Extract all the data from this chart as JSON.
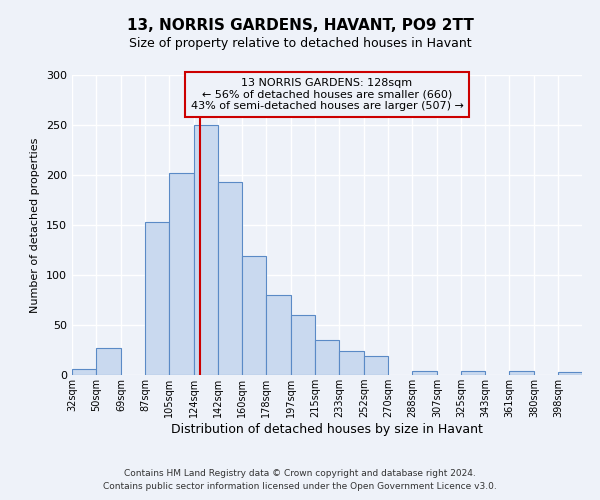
{
  "title": "13, NORRIS GARDENS, HAVANT, PO9 2TT",
  "subtitle": "Size of property relative to detached houses in Havant",
  "xlabel": "Distribution of detached houses by size in Havant",
  "ylabel": "Number of detached properties",
  "bin_labels": [
    "32sqm",
    "50sqm",
    "69sqm",
    "87sqm",
    "105sqm",
    "124sqm",
    "142sqm",
    "160sqm",
    "178sqm",
    "197sqm",
    "215sqm",
    "233sqm",
    "252sqm",
    "270sqm",
    "288sqm",
    "307sqm",
    "325sqm",
    "343sqm",
    "361sqm",
    "380sqm",
    "398sqm"
  ],
  "bin_edges": [
    32,
    50,
    69,
    87,
    105,
    124,
    142,
    160,
    178,
    197,
    215,
    233,
    252,
    270,
    288,
    307,
    325,
    343,
    361,
    380,
    398
  ],
  "bar_heights": [
    6,
    27,
    0,
    153,
    202,
    250,
    193,
    119,
    80,
    60,
    35,
    24,
    19,
    0,
    4,
    0,
    4,
    0,
    4,
    0,
    3
  ],
  "bar_facecolor": "#c9d9ef",
  "bar_edgecolor": "#5a8ac6",
  "property_line_x": 128,
  "property_line_color": "#cc0000",
  "annotation_title": "13 NORRIS GARDENS: 128sqm",
  "annotation_line1": "← 56% of detached houses are smaller (660)",
  "annotation_line2": "43% of semi-detached houses are larger (507) →",
  "annotation_box_edgecolor": "#cc0000",
  "ylim": [
    0,
    300
  ],
  "yticks": [
    0,
    50,
    100,
    150,
    200,
    250,
    300
  ],
  "footer1": "Contains HM Land Registry data © Crown copyright and database right 2024.",
  "footer2": "Contains public sector information licensed under the Open Government Licence v3.0.",
  "bg_color": "#eef2f9",
  "plot_bg_color": "#eef2f9",
  "grid_color": "#ffffff"
}
